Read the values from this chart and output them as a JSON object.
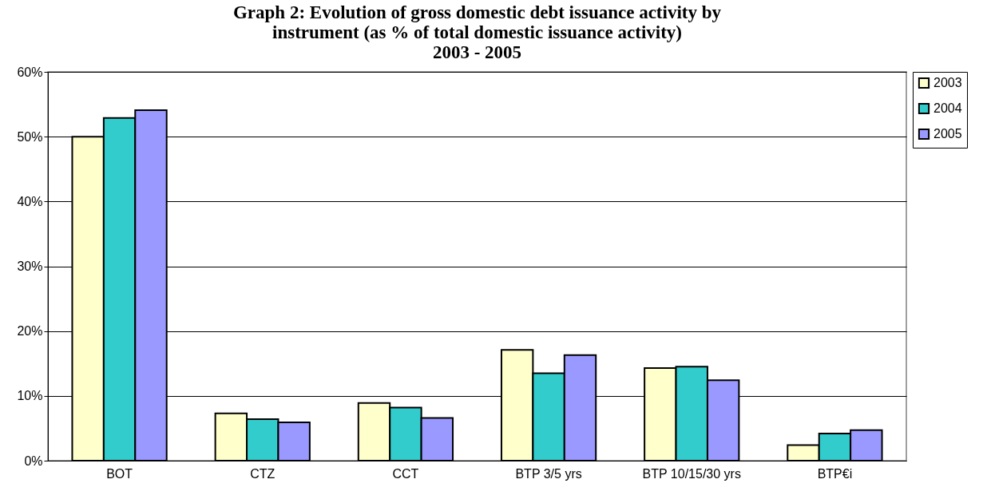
{
  "chart_data": {
    "type": "bar",
    "title": "Graph 2: Evolution of gross domestic debt issuance activity by instrument (as % of total domestic issuance activity)\n2003 - 2005",
    "categories": [
      "BOT",
      "CTZ",
      "CCT",
      "BTP 3/5 yrs",
      "BTP 10/15/30 yrs",
      "BTP€i"
    ],
    "series": [
      {
        "name": "2003",
        "color": "#ffffcc",
        "values": [
          50,
          7.3,
          8.9,
          17.1,
          14.3,
          2.4
        ]
      },
      {
        "name": "2004",
        "color": "#33cccc",
        "values": [
          52.9,
          6.4,
          8.2,
          13.5,
          14.5,
          4.2
        ]
      },
      {
        "name": "2005",
        "color": "#9999ff",
        "values": [
          54.1,
          5.9,
          6.6,
          16.3,
          12.4,
          4.7
        ]
      }
    ],
    "ylim": [
      0,
      60
    ],
    "yticks": [
      {
        "value": 0,
        "label": "0%"
      },
      {
        "value": 10,
        "label": "10%"
      },
      {
        "value": 20,
        "label": "20%"
      },
      {
        "value": 30,
        "label": "30%"
      },
      {
        "value": 40,
        "label": "40%"
      },
      {
        "value": 50,
        "label": "50%"
      },
      {
        "value": 60,
        "label": "60%"
      }
    ],
    "grid": "y",
    "legend": "right"
  }
}
